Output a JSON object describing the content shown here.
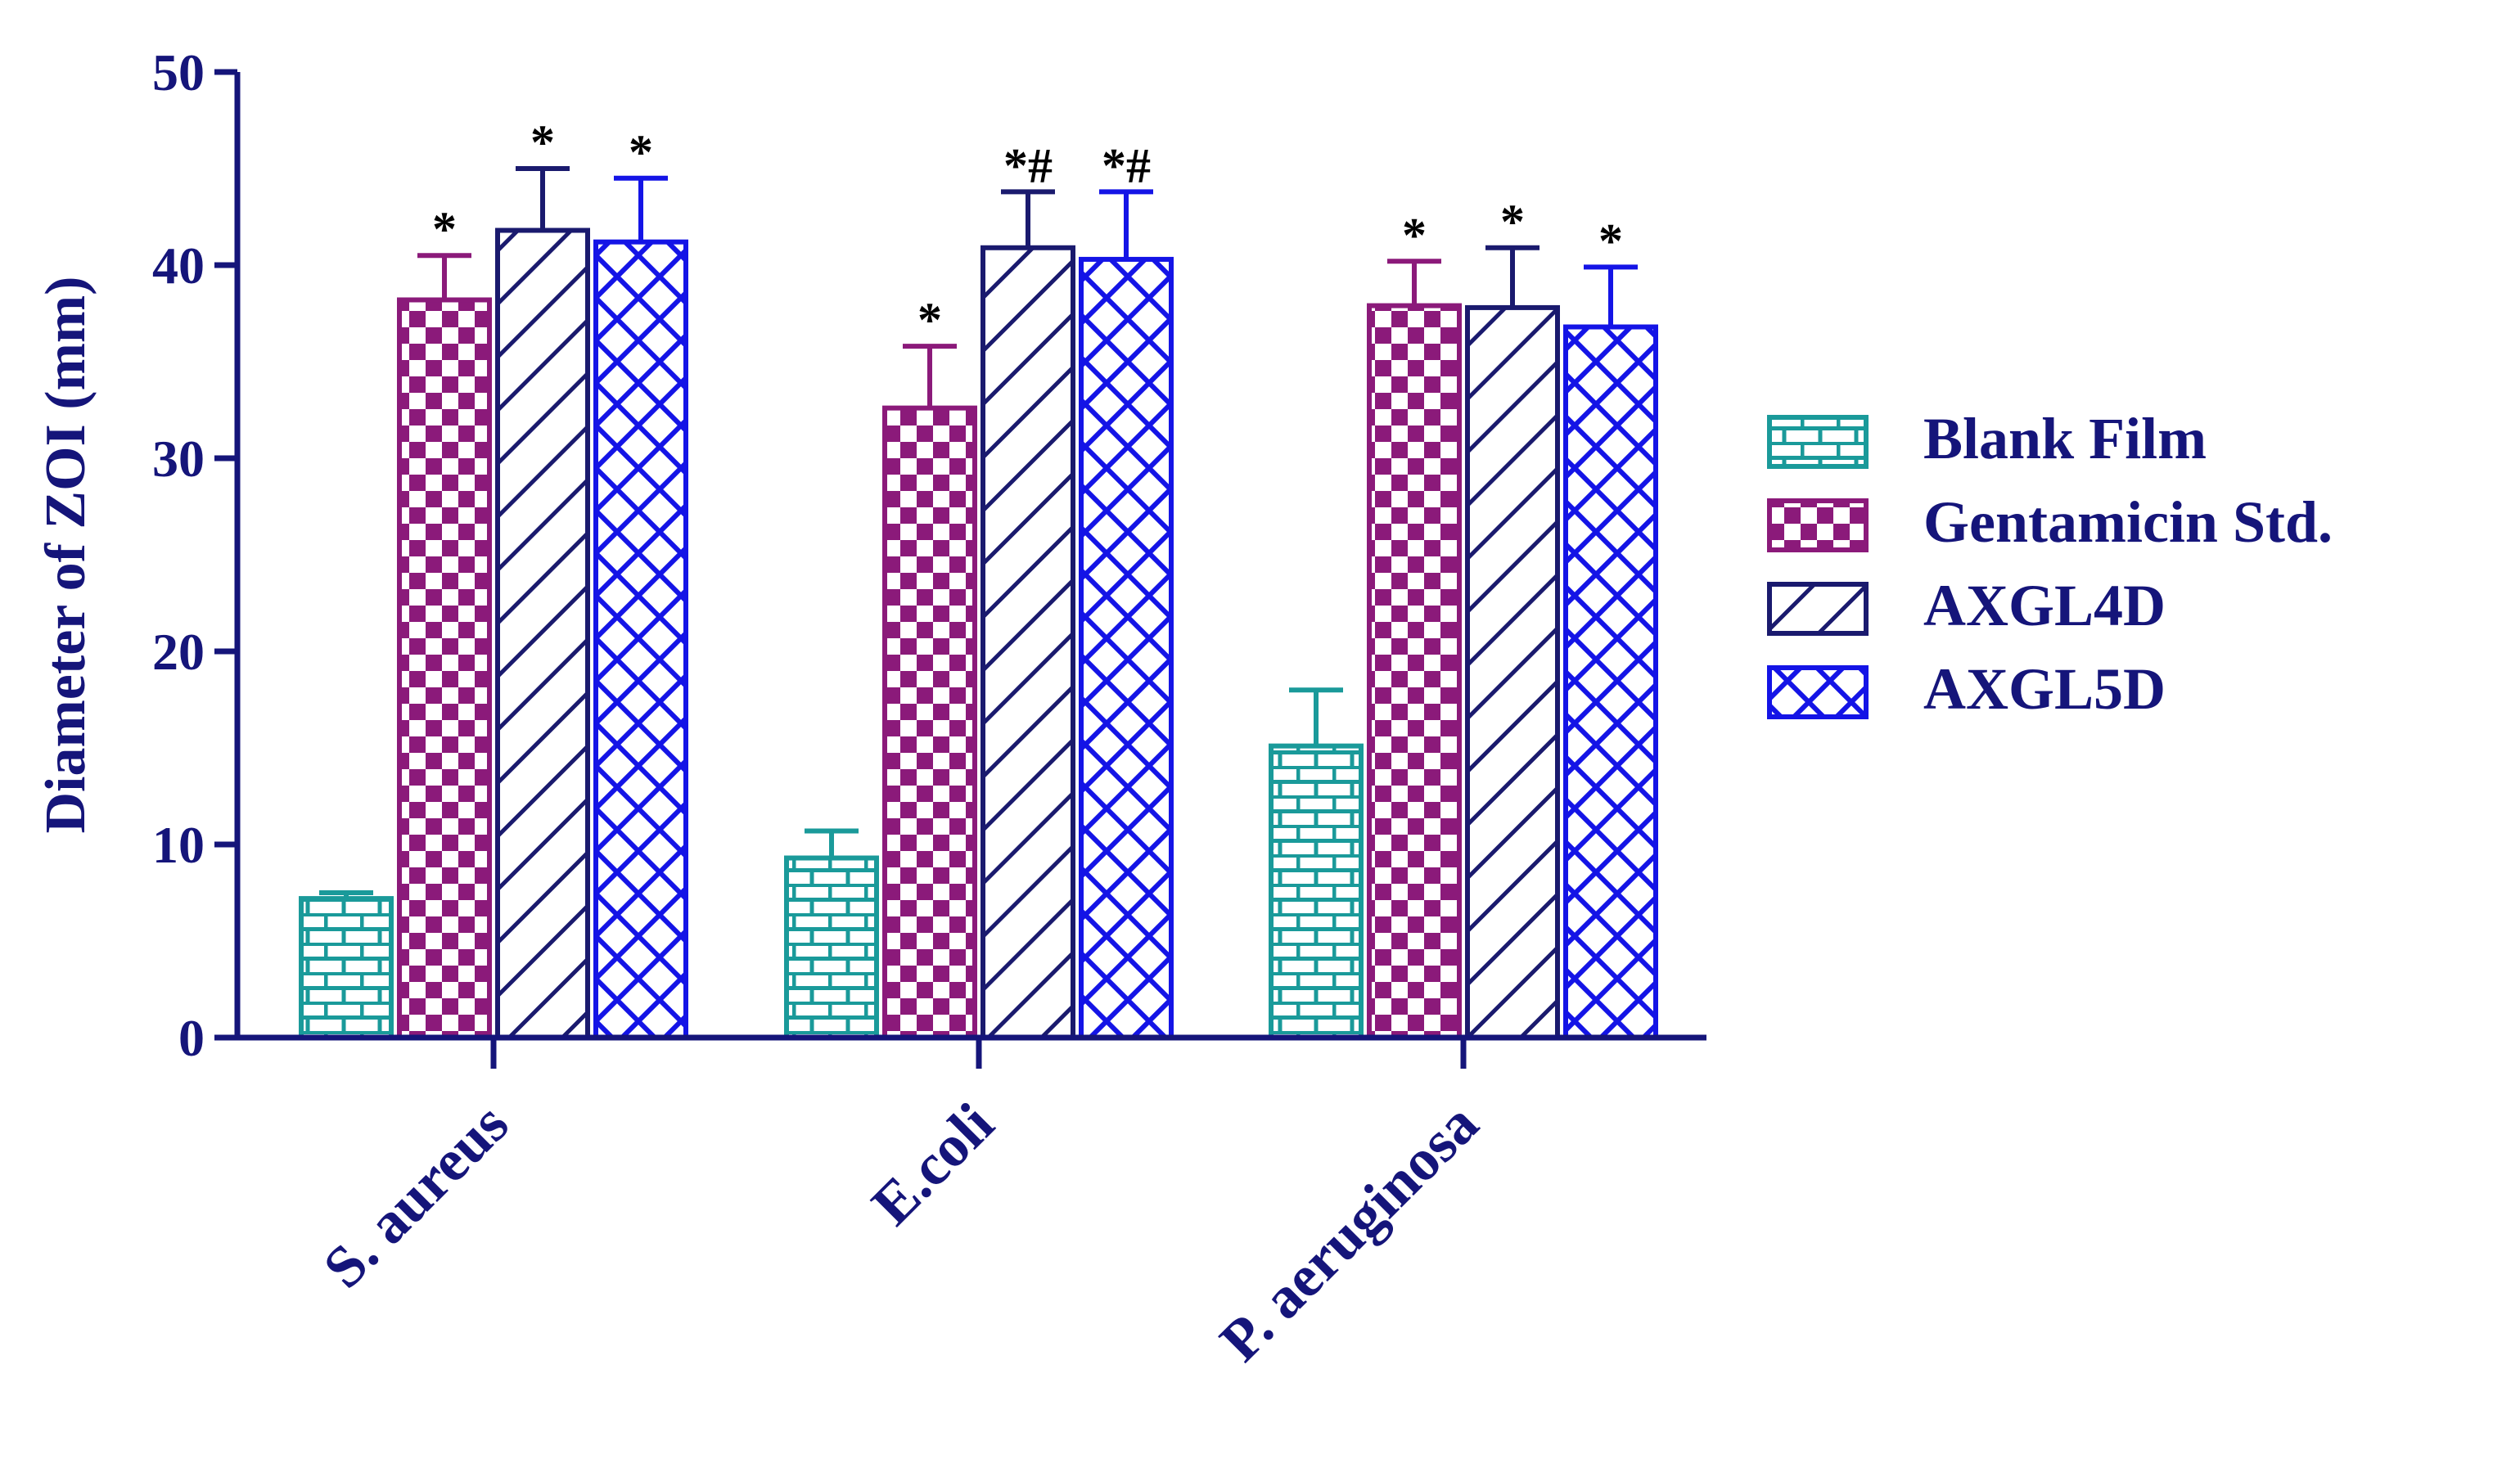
{
  "chart_data": {
    "type": "bar",
    "title": "",
    "xlabel": "",
    "ylabel": "Diameter of ZOI (mm)",
    "ylim": [
      0,
      50
    ],
    "yticks": [
      "0",
      "10",
      "20",
      "30",
      "40",
      "50"
    ],
    "categories": [
      "S. aureus",
      "E.coli",
      "P. aeruginosa"
    ],
    "legend_position": "right",
    "series": [
      {
        "name": "Blank Film",
        "color": "#1a9a9a",
        "pattern": "brick",
        "values": [
          7.2,
          9.3,
          15.1
        ],
        "errors": [
          0.3,
          1.4,
          2.9
        ],
        "annotations": [
          "",
          "",
          ""
        ]
      },
      {
        "name": "Gentamicin Std.",
        "color": "#8b1a7a",
        "pattern": "checker",
        "values": [
          38.2,
          32.6,
          37.9
        ],
        "errors": [
          2.3,
          3.2,
          2.3
        ],
        "annotations": [
          "*",
          "*",
          "*"
        ]
      },
      {
        "name": "AXGL4D",
        "color": "#1a1a6e",
        "pattern": "diagonal",
        "values": [
          41.8,
          40.9,
          37.8
        ],
        "errors": [
          3.2,
          2.9,
          3.1
        ],
        "annotations": [
          "*",
          "*#",
          "*"
        ]
      },
      {
        "name": "AXGL5D",
        "color": "#1414e6",
        "pattern": "crosshatch",
        "values": [
          41.2,
          40.3,
          36.8
        ],
        "errors": [
          3.3,
          3.5,
          3.1
        ],
        "annotations": [
          "*",
          "*#",
          "*"
        ]
      }
    ]
  },
  "colors": {
    "axis": "#15157a",
    "annotation": "#000000"
  }
}
